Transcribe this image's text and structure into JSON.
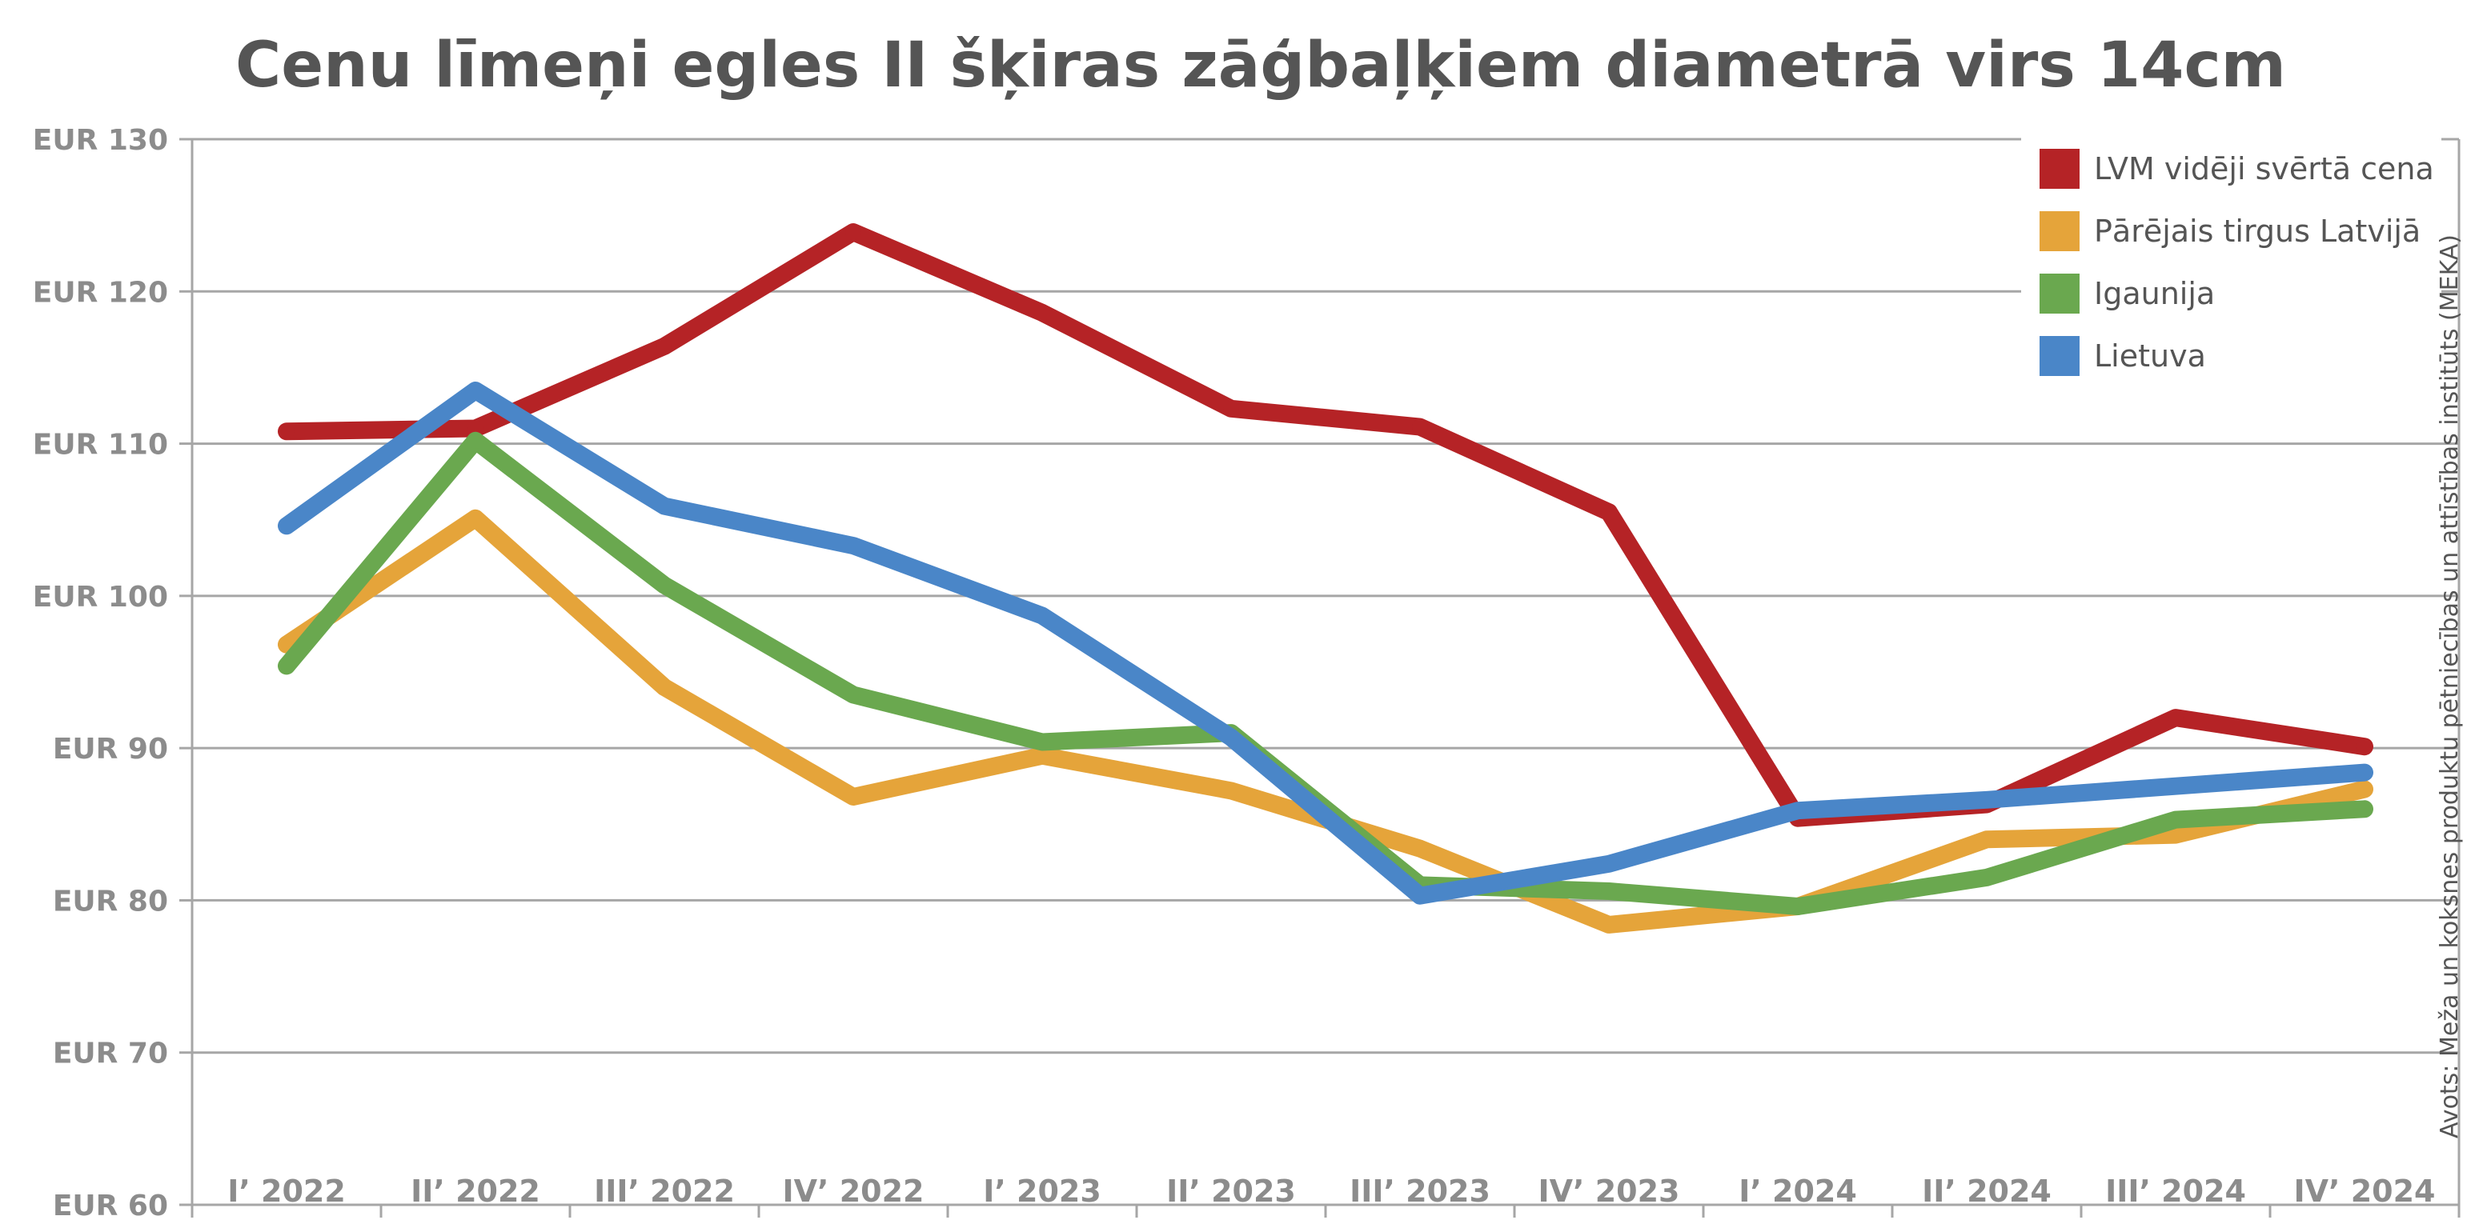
{
  "colors": {
    "LVM vidēji svērtā cena": "#b52326",
    "Pārējais tirgus Latvijā": "#e5a43a",
    "Igaunija": "#6aa84f",
    "Lietuva": "#4a86c8",
    "gridline": "#a6a6a6",
    "text": "#555555",
    "tick": "#8c8c8c"
  },
  "chart_data": {
    "type": "line",
    "title": "Cenu līmeņi egles II šķiras zāģbaļķiem diametrā virs 14cm",
    "source": "Avots: Meža un koksnes produktu pētniecības un attīstības institūts (MEKA)",
    "xlabel": "",
    "ylabel": "",
    "categories": [
      "I’ 2022",
      "II’ 2022",
      "III’ 2022",
      "IV’ 2022",
      "I’ 2023",
      "II’ 2023",
      "III’ 2023",
      "IV’ 2023",
      "I’ 2024",
      "II’ 2024",
      "III’ 2024",
      "IV’ 2024"
    ],
    "ylim": [
      60,
      130
    ],
    "yticks": [
      130,
      120,
      110,
      100,
      90,
      80,
      70,
      60
    ],
    "ytick_labels": [
      "EUR 130",
      "EUR 120",
      "EUR 110",
      "EUR 100",
      "EUR 90",
      "EUR 80",
      "EUR 70",
      "EUR 60"
    ],
    "grid": true,
    "legend": "top-right",
    "series": [
      {
        "name": "LVM vidēji svērtā cena",
        "values": [
          110.8,
          111.0,
          116.4,
          123.9,
          118.6,
          112.3,
          111.1,
          105.5,
          85.4,
          86.3,
          92.0,
          90.1
        ]
      },
      {
        "name": "Pārējais tirgus Latvijā",
        "values": [
          96.8,
          105.1,
          94.0,
          86.8,
          89.5,
          87.2,
          83.4,
          78.4,
          79.6,
          84.0,
          84.3,
          87.3
        ]
      },
      {
        "name": "Igaunija",
        "values": [
          95.4,
          110.2,
          100.7,
          93.5,
          90.4,
          91.0,
          81.0,
          80.6,
          79.6,
          81.5,
          85.3,
          86.0
        ]
      },
      {
        "name": "Lietuva",
        "values": [
          104.6,
          113.5,
          105.9,
          103.3,
          98.7,
          90.7,
          80.3,
          82.4,
          85.9,
          86.6,
          87.5,
          88.4
        ]
      }
    ]
  }
}
